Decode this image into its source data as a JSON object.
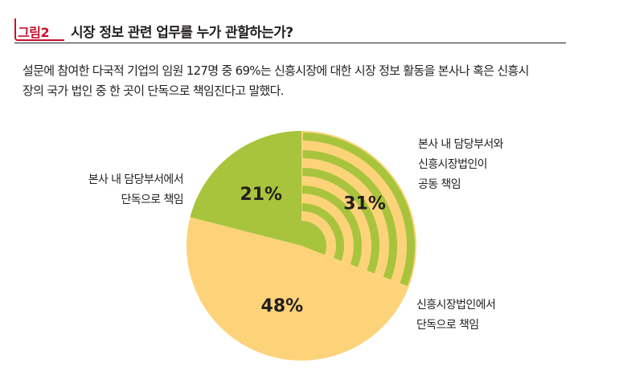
{
  "figure": {
    "tag": "그림2",
    "title": "시장 정보 관련 업무를 누가 관할하는가?"
  },
  "intro": {
    "line1": "설문에 참여한 다국적 기업의 임원 127명 중 69%는 신흥시장에 대한 시장 정보 활동을 본사나 혹은 신흥시",
    "line2": "장의 국가 법인 중 한 곳이 단독으로 책임진다고 말했다."
  },
  "chart_data": {
    "type": "pie",
    "slices": [
      {
        "label": "본사 내 담당부서와 신흥시장법인이 공동 책임",
        "value": 31,
        "value_label": "31%",
        "color": "#a8c43c",
        "pattern": "concentric-arcs",
        "callout_lines": [
          "본사 내 담당부서와",
          "신흥시장법인이",
          "공동 책임"
        ]
      },
      {
        "label": "신흥시장법인에서 단독으로 책임",
        "value": 48,
        "value_label": "48%",
        "color": "#fdd37a",
        "callout_lines": [
          "신흥시장법인에서",
          "단독으로 책임"
        ]
      },
      {
        "label": "본사 내 담당부서에서 단독으로 책임",
        "value": 21,
        "value_label": "21%",
        "color": "#a8c43c",
        "callout_lines": [
          "본사 내 담당부서에서",
          "단독으로 책임"
        ]
      }
    ],
    "start_angle": "top",
    "direction": "clockwise"
  }
}
